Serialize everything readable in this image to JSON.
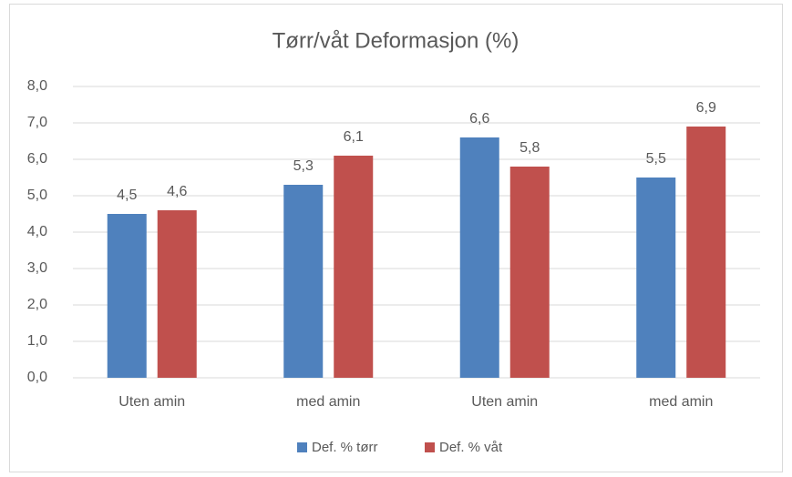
{
  "chart_data": {
    "type": "bar",
    "title": "Tørr/våt Deformasjon (%)",
    "categories": [
      "Uten amin",
      "med amin",
      "Uten amin",
      "med amin"
    ],
    "series": [
      {
        "name": "Def. % tørr",
        "color": "#4f81bd",
        "values": [
          4.5,
          5.3,
          6.6,
          5.5
        ],
        "value_labels": [
          "4,5",
          "5,3",
          "6,6",
          "5,5"
        ]
      },
      {
        "name": "Def. % våt",
        "color": "#c0504d",
        "values": [
          4.6,
          6.1,
          5.8,
          6.9
        ],
        "value_labels": [
          "4,6",
          "6,1",
          "5,8",
          "6,9"
        ]
      }
    ],
    "ylim": [
      0,
      8
    ],
    "yticks": [
      {
        "value": 0,
        "label": "0,0"
      },
      {
        "value": 1,
        "label": "1,0"
      },
      {
        "value": 2,
        "label": "2,0"
      },
      {
        "value": 3,
        "label": "3,0"
      },
      {
        "value": 4,
        "label": "4,0"
      },
      {
        "value": 5,
        "label": "5,0"
      },
      {
        "value": 6,
        "label": "6,0"
      },
      {
        "value": 7,
        "label": "7,0"
      },
      {
        "value": 8,
        "label": "8,0"
      }
    ],
    "grid": true,
    "legend": "bottom"
  }
}
